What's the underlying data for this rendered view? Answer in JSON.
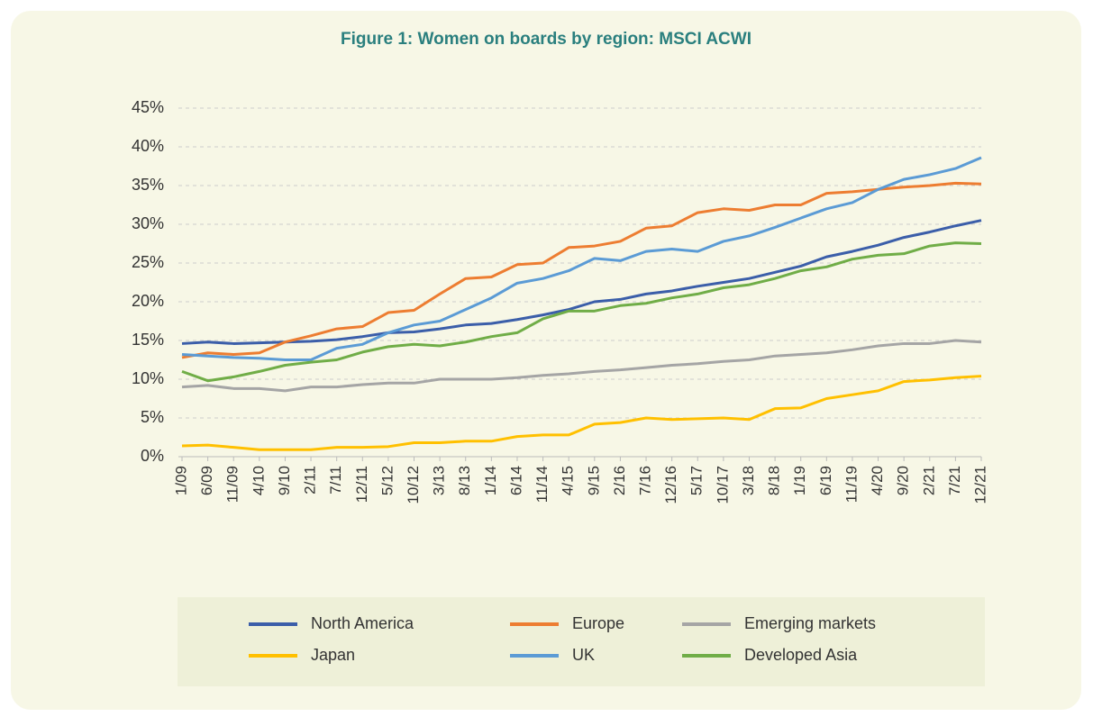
{
  "chart_data": {
    "type": "line",
    "title": "Figure 1: Women on boards by region: MSCI ACWI",
    "categories": [
      "1/09",
      "6/09",
      "11/09",
      "4/10",
      "9/10",
      "2/11",
      "7/11",
      "12/11",
      "5/12",
      "10/12",
      "3/13",
      "8/13",
      "1/14",
      "6/14",
      "11/14",
      "4/15",
      "9/15",
      "2/16",
      "7/16",
      "12/16",
      "5/17",
      "10/17",
      "3/18",
      "8/18",
      "1/19",
      "6/19",
      "11/19",
      "4/20",
      "9/20",
      "2/21",
      "7/21",
      "12/21"
    ],
    "series": [
      {
        "name": "North America",
        "color": "#3b5ea9",
        "values": [
          14.6,
          14.8,
          14.6,
          14.7,
          14.8,
          14.9,
          15.1,
          15.5,
          16.0,
          16.1,
          16.5,
          17.0,
          17.2,
          17.7,
          18.3,
          19.0,
          20.0,
          20.3,
          21.0,
          21.4,
          22.0,
          22.5,
          23.0,
          23.8,
          24.6,
          25.8,
          26.5,
          27.3,
          28.3,
          29.0,
          29.8,
          30.5
        ]
      },
      {
        "name": "Europe",
        "color": "#ed7d31",
        "values": [
          12.8,
          13.4,
          13.2,
          13.4,
          14.8,
          15.6,
          16.5,
          16.8,
          18.6,
          18.9,
          21.0,
          23.0,
          23.2,
          24.8,
          25.0,
          27.0,
          27.2,
          27.8,
          29.5,
          29.8,
          31.5,
          32.0,
          31.8,
          32.5,
          32.5,
          34.0,
          34.2,
          34.5,
          34.8,
          35.0,
          35.3,
          35.2
        ]
      },
      {
        "name": "Emerging markets",
        "color": "#a5a5a5",
        "values": [
          9.0,
          9.2,
          8.8,
          8.8,
          8.5,
          9.0,
          9.0,
          9.3,
          9.5,
          9.5,
          10.0,
          10.0,
          10.0,
          10.2,
          10.5,
          10.7,
          11.0,
          11.2,
          11.5,
          11.8,
          12.0,
          12.3,
          12.5,
          13.0,
          13.2,
          13.4,
          13.8,
          14.3,
          14.6,
          14.6,
          15.0,
          14.8
        ]
      },
      {
        "name": "Japan",
        "color": "#ffc000",
        "values": [
          1.4,
          1.5,
          1.2,
          0.9,
          0.9,
          0.9,
          1.2,
          1.2,
          1.3,
          1.8,
          1.8,
          2.0,
          2.0,
          2.6,
          2.8,
          2.8,
          4.2,
          4.4,
          5.0,
          4.8,
          4.9,
          5.0,
          4.8,
          6.2,
          6.3,
          7.5,
          8.0,
          8.5,
          9.7,
          9.9,
          10.2,
          10.4
        ]
      },
      {
        "name": "UK",
        "color": "#5b9bd5",
        "values": [
          13.2,
          13.0,
          12.8,
          12.7,
          12.5,
          12.5,
          14.0,
          14.5,
          16.0,
          17.0,
          17.5,
          19.0,
          20.5,
          22.4,
          23.0,
          24.0,
          25.6,
          25.3,
          26.5,
          26.8,
          26.5,
          27.8,
          28.5,
          29.6,
          30.8,
          32.0,
          32.8,
          34.5,
          35.8,
          36.4,
          37.2,
          38.6
        ]
      },
      {
        "name": "Developed Asia",
        "color": "#70ad47",
        "values": [
          11.0,
          9.8,
          10.3,
          11.0,
          11.8,
          12.2,
          12.5,
          13.5,
          14.2,
          14.5,
          14.3,
          14.8,
          15.5,
          16.0,
          17.8,
          18.8,
          18.8,
          19.5,
          19.8,
          20.5,
          21.0,
          21.8,
          22.2,
          23.0,
          24.0,
          24.5,
          25.5,
          26.0,
          26.2,
          27.2,
          27.6,
          27.5
        ]
      }
    ],
    "ylim": [
      0,
      45
    ],
    "yticks": [
      {
        "value": 0,
        "label": "0%"
      },
      {
        "value": 5,
        "label": "5%"
      },
      {
        "value": 10,
        "label": "10%"
      },
      {
        "value": 15,
        "label": "15%"
      },
      {
        "value": 20,
        "label": "20%"
      },
      {
        "value": 25,
        "label": "25%"
      },
      {
        "value": 30,
        "label": "30%"
      },
      {
        "value": 35,
        "label": "35%"
      },
      {
        "value": 40,
        "label": "40%"
      },
      {
        "value": 45,
        "label": "45%"
      }
    ],
    "grid": true
  }
}
